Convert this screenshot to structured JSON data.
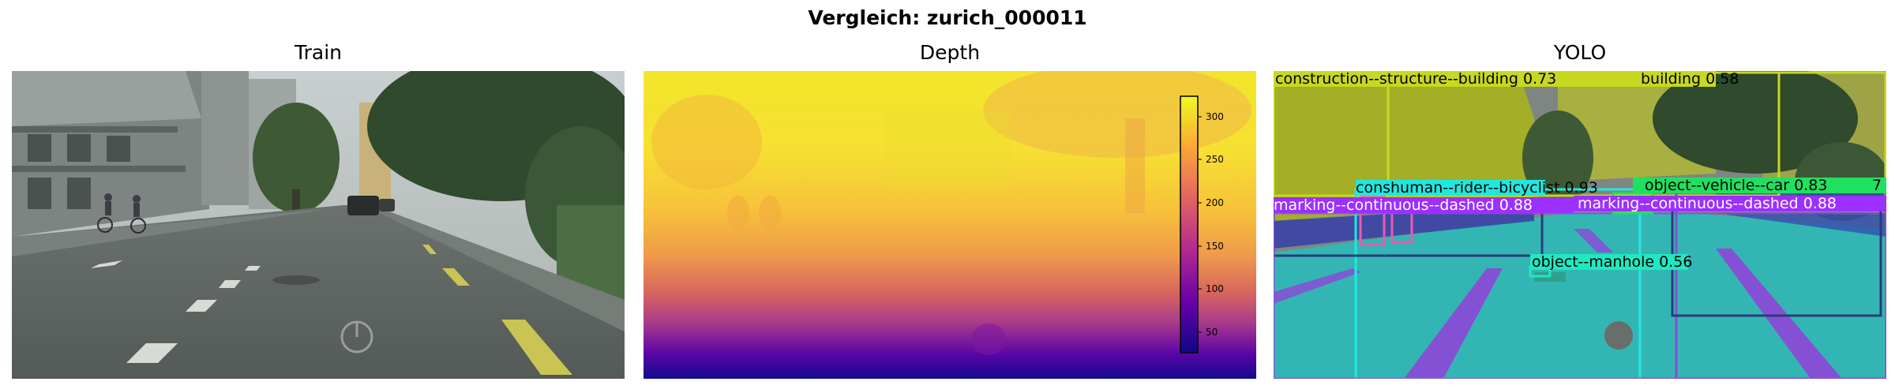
{
  "figure": {
    "title": "Vergleich: zurich_000011"
  },
  "panels": [
    {
      "title": "Train",
      "kind": "rgb-street-scene"
    },
    {
      "title": "Depth",
      "kind": "depth-map",
      "colormap": "plasma"
    },
    {
      "title": "YOLO",
      "kind": "segmentation-overlay"
    }
  ],
  "depth_colorbar": {
    "ticks": [
      "300",
      "250",
      "200",
      "150",
      "100",
      "50"
    ],
    "colors": [
      "#0d0887",
      "#6a00a8",
      "#b12a90",
      "#e16462",
      "#fca636",
      "#f0f921"
    ]
  },
  "detections": [
    {
      "label": "construction--structure--building 0.73",
      "color": "#c8d820"
    },
    {
      "label": "building 0.58",
      "color": "#c8d820"
    },
    {
      "label": "human--rider--bicyclist 0.93",
      "color": "#20e8e0"
    },
    {
      "label": "cons",
      "color": "#20e8e0"
    },
    {
      "label": "object--vehicle--car 0.83",
      "color": "#20e060"
    },
    {
      "label": "7",
      "color": "#20e060"
    },
    {
      "label": "marking--continuous--dashed 0.88",
      "color": "#9b30ff"
    },
    {
      "label": "marking--continuous--dashed 0.88",
      "color": "#9b30ff"
    },
    {
      "label": "object--manhole 0.56",
      "color": "#20e8c0"
    }
  ]
}
